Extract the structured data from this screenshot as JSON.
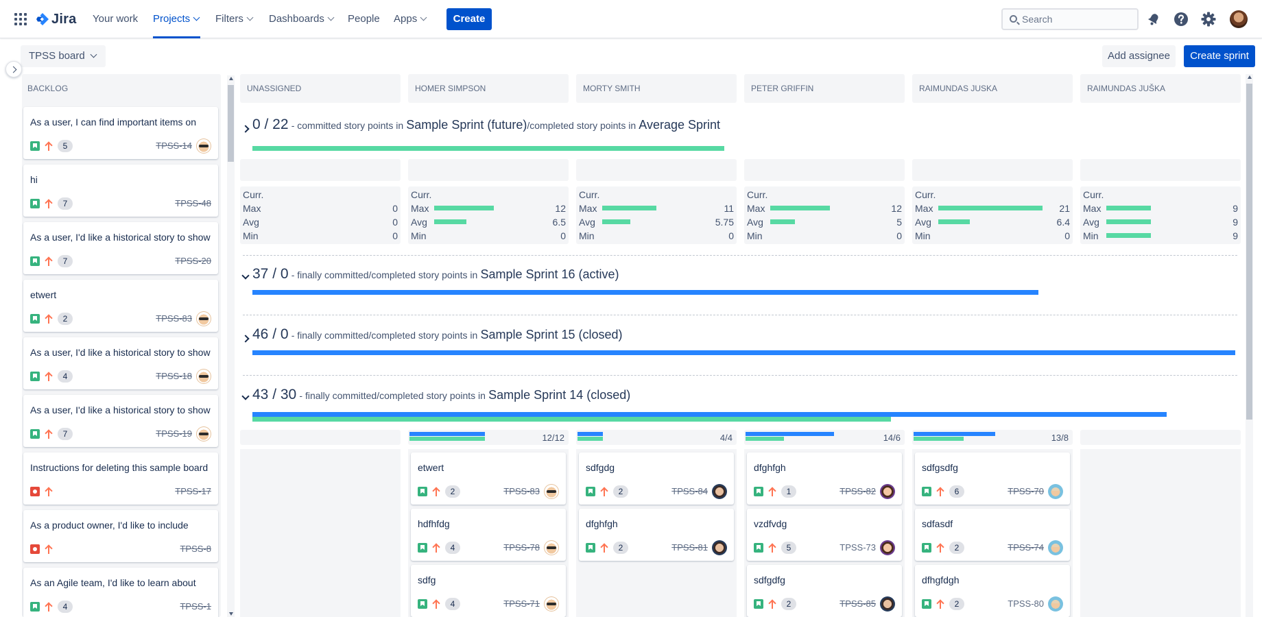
{
  "nav": {
    "logo_text": "Jira",
    "items": [
      {
        "label": "Your work"
      },
      {
        "label": "Projects"
      },
      {
        "label": "Filters"
      },
      {
        "label": "Dashboards"
      },
      {
        "label": "People"
      },
      {
        "label": "Apps"
      }
    ],
    "create_label": "Create",
    "search_placeholder": "Search",
    "accent": "#0052cc"
  },
  "toolbar": {
    "board_name": "TPSS board",
    "add_assignee_label": "Add assignee",
    "create_sprint_label": "Create sprint"
  },
  "backlog": {
    "title": "BACKLOG",
    "cards": [
      {
        "summary": "As a user, I can find important items on",
        "type": "story",
        "points": "5",
        "key": "TPSS-14",
        "done": true,
        "avatar": "bald"
      },
      {
        "summary": "hi",
        "type": "story",
        "points": "7",
        "key": "TPSS-48",
        "done": true,
        "avatar": ""
      },
      {
        "summary": "As a user, I'd like a historical story to show",
        "type": "story",
        "points": "7",
        "key": "TPSS-20",
        "done": true,
        "avatar": ""
      },
      {
        "summary": "etwert",
        "type": "story",
        "points": "2",
        "key": "TPSS-83",
        "done": true,
        "avatar": "bald"
      },
      {
        "summary": "As a user, I'd like a historical story to show",
        "type": "story",
        "points": "4",
        "key": "TPSS-18",
        "done": true,
        "avatar": "bald"
      },
      {
        "summary": "As a user, I'd like a historical story to show",
        "type": "story",
        "points": "7",
        "key": "TPSS-19",
        "done": true,
        "avatar": "bald"
      },
      {
        "summary": "Instructions for deleting this sample board",
        "type": "bug",
        "points": "",
        "key": "TPSS-17",
        "done": true,
        "avatar": ""
      },
      {
        "summary": "As a product owner, I'd like to include",
        "type": "bug",
        "points": "",
        "key": "TPSS-8",
        "done": true,
        "avatar": ""
      },
      {
        "summary": "As an Agile team, I'd like to learn about",
        "type": "story",
        "points": "4",
        "key": "TPSS-1",
        "done": true,
        "avatar": ""
      }
    ]
  },
  "columns": [
    "UNASSIGNED",
    "HOMER SIMPSON",
    "MORTY SMITH",
    "PETER GRIFFIN",
    "RAIMUNDAS JUSKA",
    "RAIMUNDAS JUŠKA"
  ],
  "sprints": [
    {
      "ratio": "0 / 22",
      "desc": "- committed story points in",
      "name": "Sample Sprint (future)",
      "desc2": "/completed story points in",
      "name2": "Average Sprint",
      "expanded": false,
      "committed_fraction": 0.48
    },
    {
      "ratio": "37 / 0",
      "desc": "- finally committed/completed story points in",
      "name": "Sample Sprint 16 (active)",
      "expanded": true,
      "committed_fraction": 0.8,
      "completed_fraction": 0
    },
    {
      "ratio": "46 / 0",
      "desc": "- finally committed/completed story points in",
      "name": "Sample Sprint 15 (closed)",
      "expanded": false,
      "committed_fraction": 1.0,
      "completed_fraction": 0
    },
    {
      "ratio": "43 / 30",
      "desc": "- finally committed/completed story points in",
      "name": "Sample Sprint 14 (closed)",
      "expanded": true,
      "committed_fraction": 0.93,
      "completed_fraction": 0.65
    }
  ],
  "stats": {
    "labels": [
      "Curr.",
      "Max",
      "Avg",
      "Min"
    ],
    "columns": [
      {
        "curr": "",
        "max": "0",
        "avg": "0",
        "min": "0",
        "bars": [
          0,
          0,
          0
        ]
      },
      {
        "curr": "",
        "max": "12",
        "avg": "6.5",
        "min": "0",
        "bars": [
          0.57,
          0.31,
          0
        ]
      },
      {
        "curr": "",
        "max": "11",
        "avg": "5.75",
        "min": "0",
        "bars": [
          0.52,
          0.27,
          0
        ]
      },
      {
        "curr": "",
        "max": "12",
        "avg": "5",
        "min": "0",
        "bars": [
          0.57,
          0.24,
          0
        ]
      },
      {
        "curr": "",
        "max": "21",
        "avg": "6.4",
        "min": "0",
        "bars": [
          1.0,
          0.3,
          0
        ]
      },
      {
        "curr": "",
        "max": "9",
        "avg": "9",
        "min": "9",
        "bars": [
          0.43,
          0.43,
          0.43
        ]
      }
    ]
  },
  "sprint14_columns": [
    {
      "ratio": "",
      "committed": 0,
      "completed": 0,
      "cards": []
    },
    {
      "ratio": "12/12",
      "committed": 0.47,
      "completed": 0.47,
      "cards": [
        {
          "summary": "etwert",
          "points": "2",
          "key": "TPSS-83",
          "done": true,
          "avatar": "bald"
        },
        {
          "summary": "hdfhfdg",
          "points": "4",
          "key": "TPSS-78",
          "done": true,
          "avatar": "bald"
        },
        {
          "summary": "sdfg",
          "points": "4",
          "key": "TPSS-71",
          "done": true,
          "avatar": "bald"
        }
      ]
    },
    {
      "ratio": "4/4",
      "committed": 0.16,
      "completed": 0.16,
      "cards": [
        {
          "summary": "sdfgdg",
          "points": "2",
          "key": "TPSS-84",
          "done": true,
          "avatar": "dark"
        },
        {
          "summary": "dfghfgh",
          "points": "2",
          "key": "TPSS-81",
          "done": true,
          "avatar": "dark"
        }
      ]
    },
    {
      "ratio": "14/6",
      "committed": 0.55,
      "completed": 0.24,
      "cards": [
        {
          "summary": "dfghfgh",
          "points": "1",
          "key": "TPSS-82",
          "done": true,
          "avatar": "purple"
        },
        {
          "summary": "vzdfvdg",
          "points": "5",
          "key": "TPSS-73",
          "done": false,
          "avatar": "purple"
        },
        {
          "summary": "sdfgdfg",
          "points": "2",
          "key": "TPSS-85",
          "done": true,
          "avatar": "dark"
        }
      ]
    },
    {
      "ratio": "13/8",
      "committed": 0.51,
      "completed": 0.31,
      "cards": [
        {
          "summary": "sdfgsdfg",
          "points": "6",
          "key": "TPSS-70",
          "done": true,
          "avatar": "teal"
        },
        {
          "summary": "sdfasdf",
          "points": "2",
          "key": "TPSS-74",
          "done": true,
          "avatar": "teal"
        },
        {
          "summary": "dfhgfdgh",
          "points": "2",
          "key": "TPSS-80",
          "done": false,
          "avatar": "teal"
        }
      ]
    },
    {
      "ratio": "",
      "committed": 0,
      "completed": 0,
      "cards": []
    }
  ],
  "colors": {
    "green": "#57d9a3",
    "blue": "#2684ff",
    "story": "#36b37e",
    "bug": "#e5493a",
    "priority": "#ff7452"
  }
}
